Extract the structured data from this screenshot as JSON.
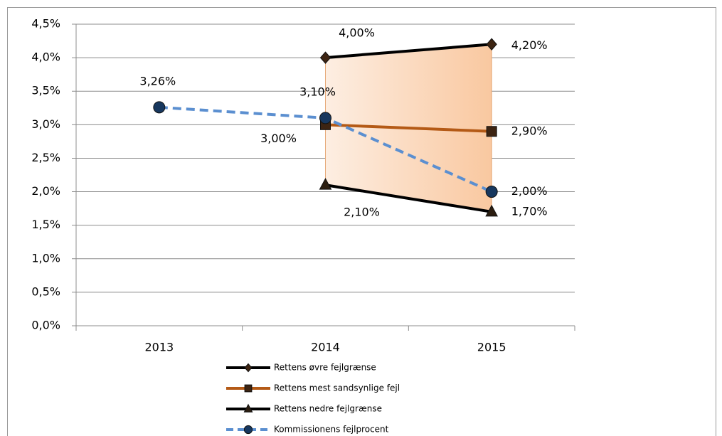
{
  "chart_data": {
    "type": "line",
    "categories": [
      "2013",
      "2014",
      "2015"
    ],
    "ylim": [
      0,
      4.5
    ],
    "yticks": [
      {
        "value": 0,
        "label": "0,0%"
      },
      {
        "value": 0.5,
        "label": "0,5%"
      },
      {
        "value": 1,
        "label": "1,0%"
      },
      {
        "value": 1.5,
        "label": "1,5%"
      },
      {
        "value": 2,
        "label": "2,0%"
      },
      {
        "value": 2.5,
        "label": "2,5%"
      },
      {
        "value": 3,
        "label": "3,0%"
      },
      {
        "value": 3.5,
        "label": "3,5%"
      },
      {
        "value": 4,
        "label": "4,0%"
      },
      {
        "value": 4.5,
        "label": "4,5%"
      }
    ],
    "grid": true,
    "legend": "bottom",
    "band_fill": [
      "#fdeee2",
      "#f9c8a0"
    ],
    "series": [
      {
        "name": "Rettens øvre fejlgrænse",
        "color": "#000000",
        "marker": "diamond",
        "marker_color": "#3d2412",
        "values": [
          null,
          4.0,
          4.2
        ],
        "value_labels": [
          null,
          "4,00%",
          "4,20%"
        ]
      },
      {
        "name": "Rettens mest sandsynlige fejl",
        "color": "#b45a16",
        "marker": "square",
        "marker_color": "#3d2412",
        "values": [
          null,
          3.0,
          2.9
        ],
        "value_labels": [
          null,
          "3,00%",
          "2,90%"
        ]
      },
      {
        "name": "Rettens nedre fejlgrænse",
        "color": "#000000",
        "marker": "triangle",
        "marker_color": "#2b1d10",
        "values": [
          null,
          2.1,
          1.7
        ],
        "value_labels": [
          null,
          "2,10%",
          "1,70%"
        ]
      },
      {
        "name": "Kommissionens fejlprocent",
        "color": "#5b8fd0",
        "dash": true,
        "marker": "circle",
        "marker_color": "#17375e",
        "values": [
          3.26,
          3.1,
          2.0
        ],
        "value_labels": [
          "3,26%",
          "3,10%",
          "2,00%"
        ]
      }
    ]
  }
}
